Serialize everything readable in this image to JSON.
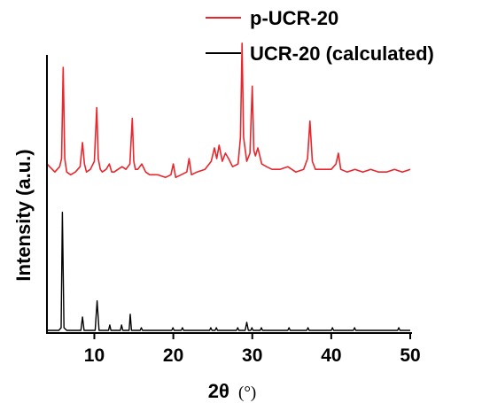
{
  "chart_data": {
    "type": "line",
    "title": "",
    "xlabel": "2θ",
    "xlabel_unit": "(°)",
    "ylabel": "Intensity (a.u.)",
    "xlim": [
      4,
      50
    ],
    "ylim": [
      0,
      100
    ],
    "xticks": [
      10,
      20,
      30,
      40,
      50
    ],
    "xtick_labels": [
      "10",
      "20",
      "30",
      "40",
      "50"
    ],
    "y_ticks_shown": false,
    "grid": false,
    "legend_position": "top-right",
    "series": [
      {
        "name": "p-UCR-20",
        "color": "#e8262c",
        "baseline": 57,
        "x": [
          4.0,
          5.0,
          5.6,
          5.85,
          6.05,
          6.25,
          6.5,
          7.0,
          7.6,
          8.2,
          8.5,
          8.75,
          9.0,
          9.5,
          10.0,
          10.3,
          10.5,
          10.75,
          11.0,
          11.5,
          11.9,
          12.2,
          12.5,
          13.0,
          13.5,
          14.0,
          14.5,
          14.8,
          15.0,
          15.2,
          15.5,
          16.0,
          16.5,
          17.0,
          18.0,
          19.0,
          19.7,
          20.0,
          20.3,
          21.0,
          21.7,
          22.0,
          22.3,
          23.0,
          24.0,
          24.8,
          25.2,
          25.5,
          25.8,
          26.2,
          26.6,
          27.0,
          27.5,
          28.2,
          28.5,
          28.7,
          28.9,
          29.3,
          29.7,
          30.0,
          30.2,
          30.4,
          30.7,
          31.2,
          31.8,
          32.5,
          33.5,
          34.5,
          35.5,
          36.5,
          37.0,
          37.3,
          37.6,
          38.0,
          39.0,
          40.0,
          40.6,
          40.9,
          41.2,
          42.0,
          43.0,
          44.0,
          45.0,
          46.0,
          47.0,
          48.0,
          49.0,
          50.0
        ],
        "y": [
          62,
          59,
          61,
          64,
          98,
          64,
          59,
          58,
          59,
          61,
          70,
          62,
          59,
          60,
          63,
          83,
          64,
          60,
          59,
          60,
          62,
          59,
          59,
          60,
          61,
          60,
          62,
          79,
          63,
          60,
          60,
          62,
          59,
          58,
          58,
          57,
          58,
          62,
          57,
          58,
          59,
          64,
          58,
          59,
          60,
          63,
          68,
          64,
          69,
          63,
          66,
          64,
          61,
          62,
          72,
          107,
          72,
          63,
          66,
          91,
          67,
          65,
          68,
          62,
          61,
          60,
          60,
          61,
          59,
          60,
          64,
          78,
          63,
          60,
          60,
          60,
          62,
          66,
          60,
          59,
          60,
          59,
          60,
          59,
          59,
          60,
          59,
          60
        ]
      },
      {
        "name": "UCR-20 (calculated)",
        "color": "#000000",
        "baseline": 0,
        "x": [
          4.0,
          5.5,
          5.8,
          5.95,
          6.15,
          6.5,
          8.3,
          8.5,
          8.7,
          10.1,
          10.35,
          10.6,
          11.8,
          11.95,
          12.1,
          13.3,
          13.45,
          13.6,
          14.4,
          14.55,
          14.7,
          15.8,
          15.95,
          16.1,
          19.8,
          19.95,
          20.1,
          21.0,
          21.15,
          21.3,
          24.6,
          24.75,
          24.9,
          25.3,
          25.45,
          25.6,
          28.0,
          28.15,
          28.3,
          29.1,
          29.3,
          29.5,
          29.8,
          29.95,
          30.1,
          31.0,
          31.15,
          31.3,
          34.5,
          34.65,
          34.8,
          36.9,
          37.05,
          37.2,
          40.0,
          40.15,
          40.3,
          42.8,
          42.95,
          43.1,
          48.4,
          48.55,
          48.7,
          50.0
        ],
        "y": [
          0,
          0,
          1,
          44,
          1,
          0,
          0,
          5,
          0,
          0,
          11,
          0,
          0,
          2,
          0,
          0,
          2,
          0,
          0,
          6,
          0,
          0,
          1,
          0,
          0,
          1,
          0,
          0,
          1,
          0,
          0,
          1,
          0,
          0,
          1,
          0,
          0,
          1,
          0,
          0,
          3,
          0,
          0,
          1,
          0,
          0,
          1,
          0,
          0,
          1,
          0,
          0,
          1,
          0,
          0,
          1,
          0,
          0,
          1,
          0,
          0,
          1,
          0,
          0
        ]
      }
    ]
  }
}
